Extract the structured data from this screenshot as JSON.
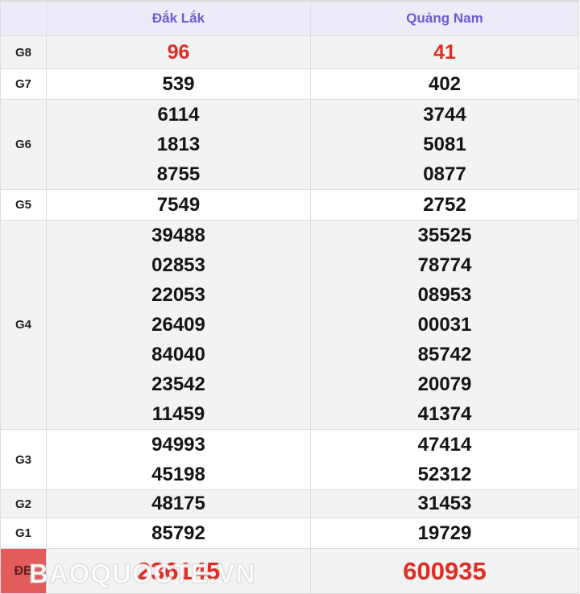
{
  "table": {
    "columns": [
      "Đắk Lắk",
      "Quảng Nam"
    ],
    "rows": [
      {
        "label": "G8",
        "highlight": true,
        "special": false,
        "values": [
          [
            "96"
          ],
          [
            "41"
          ]
        ]
      },
      {
        "label": "G7",
        "highlight": false,
        "special": false,
        "values": [
          [
            "539"
          ],
          [
            "402"
          ]
        ]
      },
      {
        "label": "G6",
        "highlight": false,
        "special": false,
        "values": [
          [
            "6114",
            "1813",
            "8755"
          ],
          [
            "3744",
            "5081",
            "0877"
          ]
        ]
      },
      {
        "label": "G5",
        "highlight": false,
        "special": false,
        "values": [
          [
            "7549"
          ],
          [
            "2752"
          ]
        ]
      },
      {
        "label": "G4",
        "highlight": false,
        "special": false,
        "values": [
          [
            "39488",
            "02853",
            "22053",
            "26409",
            "84040",
            "23542",
            "11459"
          ],
          [
            "35525",
            "78774",
            "08953",
            "00031",
            "85742",
            "20079",
            "41374"
          ]
        ]
      },
      {
        "label": "G3",
        "highlight": false,
        "special": false,
        "values": [
          [
            "94993",
            "45198"
          ],
          [
            "47414",
            "52312"
          ]
        ]
      },
      {
        "label": "G2",
        "highlight": false,
        "special": false,
        "values": [
          [
            "48175"
          ],
          [
            "31453"
          ]
        ]
      },
      {
        "label": "G1",
        "highlight": false,
        "special": false,
        "values": [
          [
            "85792"
          ],
          [
            "19729"
          ]
        ]
      },
      {
        "label": "ĐB",
        "highlight": true,
        "special": true,
        "values": [
          [
            "236145"
          ],
          [
            "600935"
          ]
        ]
      }
    ]
  },
  "watermark": {
    "text": "BAOQUOCTE.VN"
  },
  "colors": {
    "header_bg": "#edebf7",
    "header_text": "#6d5bd0",
    "highlight_value": "#e02d23",
    "special_label_bg": "#e25c5c",
    "row_alt_bg": "#f3f3f3",
    "border": "#dddddd"
  }
}
